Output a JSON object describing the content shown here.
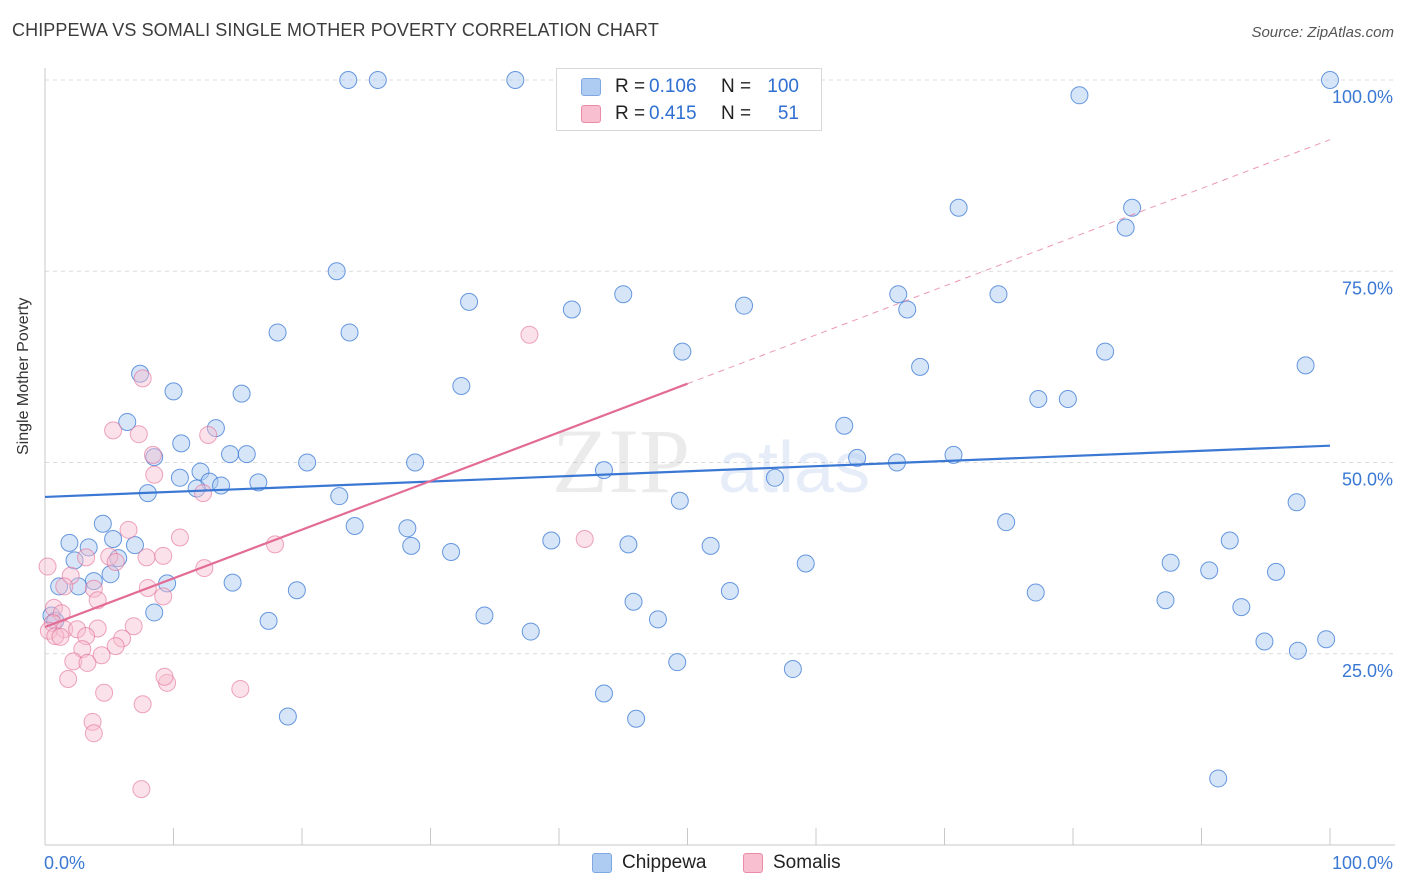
{
  "header": {
    "title": "CHIPPEWA VS SOMALI SINGLE MOTHER POVERTY CORRELATION CHART",
    "source": "Source: ZipAtlas.com"
  },
  "watermark": {
    "zip": "ZIP",
    "atlas": "atlas"
  },
  "legend": {
    "rows": [
      {
        "r_label": "R =",
        "r_value": "0.106",
        "n_label": "N =",
        "n_value": "100",
        "color": "#aecbf2",
        "border": "#7fa8e0"
      },
      {
        "r_label": "R =",
        "r_value": "0.415",
        "n_label": "N =",
        "n_value": "51",
        "color": "#f7bfd0",
        "border": "#ea8ba8"
      }
    ]
  },
  "bottom_legend": {
    "chippewa": "Chippewa",
    "somalis": "Somalis"
  },
  "chart_data": {
    "type": "scatter",
    "title": "CHIPPEWA VS SOMALI SINGLE MOTHER POVERTY CORRELATION CHART",
    "xlabel": "",
    "ylabel": "Single Mother Poverty",
    "xlim": [
      0,
      100
    ],
    "ylim": [
      0,
      100
    ],
    "x_tick_labels": [
      "0.0%",
      "100.0%"
    ],
    "y_tick_labels": [
      "25.0%",
      "50.0%",
      "75.0%",
      "100.0%"
    ],
    "y_ticks": [
      25,
      50,
      75,
      100
    ],
    "grid": true,
    "legend_position": "top-center",
    "colors": {
      "chippewa": "#3a78d4",
      "somalis": "#e36c96",
      "chippewa_fill": "#aecbf2",
      "somalis_fill": "#f7bfd0"
    },
    "series": [
      {
        "name": "Chippewa",
        "trend": {
          "x0": 0,
          "y0": 45.5,
          "x1": 100,
          "y1": 52.2
        },
        "points": [
          [
            23.6,
            100
          ],
          [
            25.9,
            100
          ],
          [
            36.6,
            100
          ],
          [
            100,
            100
          ],
          [
            80.5,
            98
          ],
          [
            71.1,
            83.3
          ],
          [
            84.6,
            83.3
          ],
          [
            84.1,
            80.7
          ],
          [
            22.7,
            75
          ],
          [
            33,
            71
          ],
          [
            41,
            70
          ],
          [
            45,
            72
          ],
          [
            54.4,
            70.5
          ],
          [
            66.4,
            72
          ],
          [
            67.1,
            70
          ],
          [
            74.2,
            72
          ],
          [
            18.1,
            67
          ],
          [
            23.7,
            67
          ],
          [
            49.6,
            64.5
          ],
          [
            68.1,
            62.5
          ],
          [
            82.5,
            64.5
          ],
          [
            98.1,
            62.7
          ],
          [
            7.4,
            61.6
          ],
          [
            10,
            59.3
          ],
          [
            15.3,
            59
          ],
          [
            32.4,
            60
          ],
          [
            77.3,
            58.3
          ],
          [
            79.6,
            58.3
          ],
          [
            6.4,
            55.3
          ],
          [
            13.3,
            54.5
          ],
          [
            62.2,
            54.8
          ],
          [
            10.6,
            52.5
          ],
          [
            14.4,
            51.1
          ],
          [
            15.7,
            51.1
          ],
          [
            8.5,
            50.7
          ],
          [
            20.4,
            50
          ],
          [
            28.8,
            50
          ],
          [
            63.2,
            50.6
          ],
          [
            66.3,
            50
          ],
          [
            70.7,
            51
          ],
          [
            12.1,
            48.8
          ],
          [
            10.5,
            48
          ],
          [
            12.8,
            47.5
          ],
          [
            11.8,
            46.6
          ],
          [
            13.7,
            47
          ],
          [
            16.6,
            47.4
          ],
          [
            8,
            46
          ],
          [
            22.9,
            45.6
          ],
          [
            49.4,
            45
          ],
          [
            56.8,
            48
          ],
          [
            43.5,
            49
          ],
          [
            97.4,
            44.8
          ],
          [
            4.5,
            42
          ],
          [
            24.1,
            41.7
          ],
          [
            28.2,
            41.4
          ],
          [
            74.8,
            42.2
          ],
          [
            1.9,
            39.5
          ],
          [
            3.4,
            38.9
          ],
          [
            5.3,
            40
          ],
          [
            7,
            39.2
          ],
          [
            28.5,
            39.1
          ],
          [
            31.6,
            38.3
          ],
          [
            39.4,
            39.8
          ],
          [
            45.4,
            39.3
          ],
          [
            51.8,
            39.1
          ],
          [
            92.2,
            39.8
          ],
          [
            2.3,
            37.2
          ],
          [
            5.7,
            37.5
          ],
          [
            59.2,
            36.8
          ],
          [
            87.6,
            36.9
          ],
          [
            90.6,
            35.9
          ],
          [
            95.8,
            35.7
          ],
          [
            3.8,
            34.5
          ],
          [
            5.1,
            35.4
          ],
          [
            1.1,
            33.8
          ],
          [
            2.6,
            33.8
          ],
          [
            9.5,
            34.2
          ],
          [
            14.6,
            34.3
          ],
          [
            19.6,
            33.3
          ],
          [
            53.3,
            33.2
          ],
          [
            77.1,
            33
          ],
          [
            87.2,
            32
          ],
          [
            45.8,
            31.8
          ],
          [
            93.1,
            31.1
          ],
          [
            8.5,
            30.4
          ],
          [
            34.2,
            30
          ],
          [
            47.7,
            29.5
          ],
          [
            17.4,
            29.3
          ],
          [
            0.5,
            30
          ],
          [
            0.8,
            29.3
          ],
          [
            37.8,
            27.9
          ],
          [
            94.9,
            26.6
          ],
          [
            97.5,
            25.4
          ],
          [
            99.7,
            26.9
          ],
          [
            49.2,
            23.9
          ],
          [
            58.2,
            23
          ],
          [
            43.5,
            19.8
          ],
          [
            46,
            16.5
          ],
          [
            18.9,
            16.8
          ],
          [
            91.3,
            8.7
          ]
        ]
      },
      {
        "name": "Somalis",
        "trend": {
          "x0": 0,
          "y0": 28.5,
          "x1": 50,
          "y1": 60.3
        },
        "trend_dashed": {
          "x0": 50,
          "y0": 60.3,
          "x1": 100,
          "y1": 92.2
        },
        "points": [
          [
            7.6,
            61
          ],
          [
            37.7,
            66.7
          ],
          [
            5.3,
            54.2
          ],
          [
            7.3,
            53.7
          ],
          [
            12.7,
            53.6
          ],
          [
            8.4,
            51
          ],
          [
            8.5,
            48.4
          ],
          [
            12.3,
            46
          ],
          [
            6.5,
            41.2
          ],
          [
            10.5,
            40.2
          ],
          [
            42,
            40
          ],
          [
            17.9,
            39.3
          ],
          [
            3.2,
            37.6
          ],
          [
            5,
            37.7
          ],
          [
            5.5,
            37
          ],
          [
            7.9,
            37.6
          ],
          [
            9.2,
            37.8
          ],
          [
            12.4,
            36.2
          ],
          [
            0.2,
            36.4
          ],
          [
            2,
            35.2
          ],
          [
            1.5,
            33.8
          ],
          [
            3.8,
            33.5
          ],
          [
            8,
            33.6
          ],
          [
            9.2,
            32.5
          ],
          [
            4.1,
            32
          ],
          [
            0.7,
            31
          ],
          [
            1.3,
            30.3
          ],
          [
            0.6,
            29
          ],
          [
            6.9,
            28.6
          ],
          [
            0.3,
            28
          ],
          [
            1.5,
            28.2
          ],
          [
            2.5,
            28.2
          ],
          [
            4.1,
            28.3
          ],
          [
            0.8,
            27.3
          ],
          [
            1.2,
            27.2
          ],
          [
            3.2,
            27.3
          ],
          [
            6,
            27
          ],
          [
            2.9,
            25.6
          ],
          [
            5.5,
            26
          ],
          [
            4.4,
            24.8
          ],
          [
            2.2,
            24
          ],
          [
            3.3,
            23.8
          ],
          [
            1.8,
            21.7
          ],
          [
            9.5,
            21.2
          ],
          [
            9.3,
            22
          ],
          [
            15.2,
            20.4
          ],
          [
            4.6,
            19.9
          ],
          [
            7.6,
            18.4
          ],
          [
            3.7,
            16.1
          ],
          [
            3.8,
            14.6
          ],
          [
            7.5,
            7.3
          ]
        ]
      }
    ]
  }
}
